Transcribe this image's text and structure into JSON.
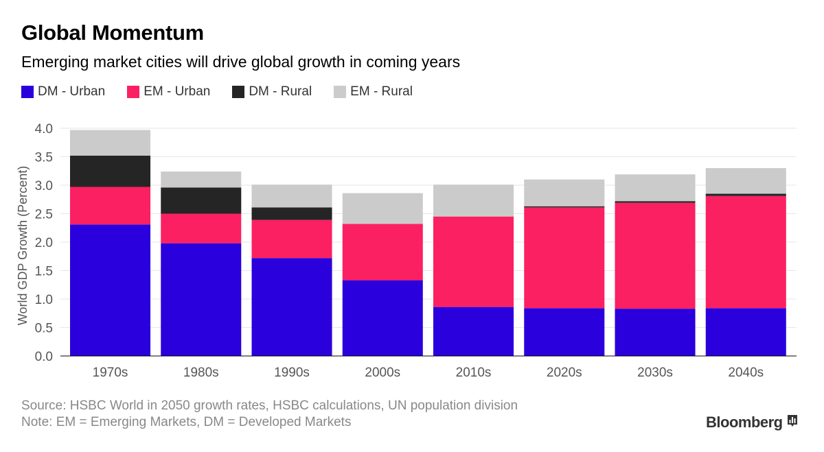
{
  "header": {
    "title": "Global Momentum",
    "subtitle": "Emerging market cities will drive global growth in coming years"
  },
  "colors": {
    "dm_urban": "#2a00dc",
    "em_urban": "#fb2062",
    "dm_rural": "#252525",
    "em_rural": "#cbcbcb"
  },
  "chart_data": {
    "type": "bar",
    "stacked": true,
    "title": "Global Momentum",
    "subtitle": "Emerging market cities will drive global growth in coming years",
    "xlabel": "",
    "ylabel": "World GDP Growth (Percent)",
    "ylim": [
      0,
      4.0
    ],
    "yticks": [
      "0.0",
      "0.5",
      "1.0",
      "1.5",
      "2.0",
      "2.5",
      "3.0",
      "3.5",
      "4.0"
    ],
    "categories": [
      "1970s",
      "1980s",
      "1990s",
      "2000s",
      "2010s",
      "2020s",
      "2030s",
      "2040s"
    ],
    "legend_position": "top-left",
    "series": [
      {
        "name": "DM - Urban",
        "color": "#2a00dc",
        "values": [
          2.31,
          1.98,
          1.72,
          1.33,
          0.86,
          0.84,
          0.83,
          0.84
        ]
      },
      {
        "name": "EM - Urban",
        "color": "#fb2062",
        "values": [
          0.66,
          0.52,
          0.67,
          0.99,
          1.59,
          1.77,
          1.86,
          1.97
        ]
      },
      {
        "name": "DM - Rural",
        "color": "#252525",
        "values": [
          0.55,
          0.46,
          0.22,
          0.0,
          0.0,
          0.02,
          0.03,
          0.04
        ]
      },
      {
        "name": "EM - Rural",
        "color": "#cbcbcb",
        "values": [
          0.45,
          0.28,
          0.4,
          0.54,
          0.56,
          0.47,
          0.47,
          0.45
        ]
      }
    ]
  },
  "footer": {
    "source": "Source: HSBC World in 2050 growth rates, HSBC calculations, UN population division",
    "note": "Note: EM = Emerging Markets, DM = Developed Markets"
  },
  "brand": {
    "name": "Bloomberg",
    "icon": "bloomberg-chart-icon"
  }
}
